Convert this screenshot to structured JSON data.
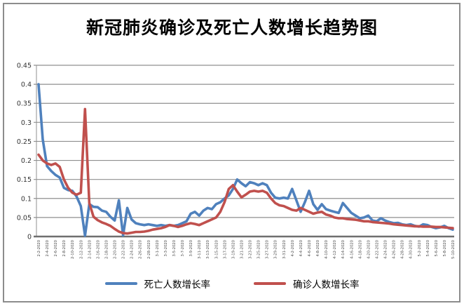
{
  "window": {
    "background": "#ffffff",
    "frame_border_color": "#8c8c8c"
  },
  "chart_data": {
    "type": "line",
    "title": "新冠肺炎确诊及死亡人数增长趋势图",
    "xlabel": "",
    "ylabel": "",
    "ylim": [
      0,
      0.45
    ],
    "y_ticks": [
      "0.45",
      "0.4",
      "0.35",
      "0.3",
      "0.25",
      "0.2",
      "0.15",
      "0.1",
      "0.05",
      "0"
    ],
    "grid": true,
    "legend_position": "bottom",
    "x_label_interval": 2,
    "x_labels": [
      "2-2-2020",
      "2-4-2020",
      "2-6-2020",
      "2-8-2020",
      "2-10-2020",
      "2-12-2020",
      "2-14-2020",
      "2-16-2020",
      "2-18-2020",
      "2-20-2020",
      "2-22-2020",
      "2-24-2020",
      "2-26-2020",
      "2-28-2020",
      "3-1-2020",
      "3-3-2020",
      "3-5-2020",
      "3-7-2020",
      "3-9-2020",
      "3-11-2020",
      "3-13-2020",
      "3-15-2020",
      "3-17-2020",
      "3-19-2020",
      "3-21-2020",
      "3-23-2020",
      "3-25-2020",
      "3-27-2020",
      "3-29-2020",
      "3-31-2020",
      "4-2-2020",
      "4-4-2020",
      "4-6-2020",
      "4-8-2020",
      "4-10-2020",
      "4-12-2020",
      "4-14-2020",
      "4-16-2020",
      "4-18-2020",
      "4-20-2020",
      "4-22-2020",
      "4-24-2020",
      "4-26-2020",
      "4-28-2020",
      "4-30-2020",
      "5-2-2020",
      "5-4-2020",
      "5-6-2020",
      "5-8-2020",
      "5-10-2020"
    ],
    "series": [
      {
        "name": "死亡人数增长率",
        "color": "#4F81BD",
        "values": [
          0.4,
          0.255,
          0.185,
          0.172,
          0.162,
          0.155,
          0.128,
          0.122,
          0.12,
          0.105,
          0.08,
          0.002,
          0.085,
          0.078,
          0.077,
          0.068,
          0.065,
          0.052,
          0.042,
          0.095,
          0.003,
          0.075,
          0.045,
          0.035,
          0.032,
          0.03,
          0.032,
          0.03,
          0.028,
          0.03,
          0.028,
          0.03,
          0.028,
          0.03,
          0.035,
          0.04,
          0.06,
          0.065,
          0.055,
          0.068,
          0.075,
          0.072,
          0.085,
          0.09,
          0.1,
          0.108,
          0.125,
          0.15,
          0.14,
          0.132,
          0.143,
          0.14,
          0.135,
          0.14,
          0.135,
          0.115,
          0.102,
          0.1,
          0.102,
          0.1,
          0.125,
          0.095,
          0.065,
          0.09,
          0.12,
          0.085,
          0.07,
          0.085,
          0.072,
          0.068,
          0.065,
          0.062,
          0.088,
          0.075,
          0.062,
          0.055,
          0.048,
          0.05,
          0.055,
          0.042,
          0.04,
          0.048,
          0.042,
          0.038,
          0.035,
          0.036,
          0.032,
          0.03,
          0.032,
          0.028,
          0.026,
          0.032,
          0.03,
          0.025,
          0.022,
          0.024,
          0.028,
          0.022,
          0.018
        ]
      },
      {
        "name": "确诊人数增长率",
        "color": "#C0504D",
        "values": [
          0.215,
          0.2,
          0.192,
          0.188,
          0.192,
          0.183,
          0.15,
          0.128,
          0.115,
          0.11,
          0.115,
          0.335,
          0.088,
          0.052,
          0.043,
          0.037,
          0.033,
          0.028,
          0.02,
          0.013,
          0.009,
          0.008,
          0.01,
          0.012,
          0.012,
          0.013,
          0.015,
          0.018,
          0.02,
          0.022,
          0.025,
          0.03,
          0.028,
          0.025,
          0.028,
          0.032,
          0.035,
          0.033,
          0.03,
          0.035,
          0.04,
          0.045,
          0.05,
          0.065,
          0.09,
          0.125,
          0.135,
          0.118,
          0.103,
          0.11,
          0.118,
          0.12,
          0.118,
          0.12,
          0.115,
          0.1,
          0.088,
          0.082,
          0.08,
          0.075,
          0.07,
          0.068,
          0.075,
          0.07,
          0.065,
          0.06,
          0.063,
          0.065,
          0.058,
          0.055,
          0.05,
          0.048,
          0.048,
          0.046,
          0.045,
          0.044,
          0.042,
          0.04,
          0.04,
          0.038,
          0.037,
          0.036,
          0.035,
          0.034,
          0.032,
          0.031,
          0.03,
          0.029,
          0.028,
          0.027,
          0.027,
          0.026,
          0.026,
          0.026,
          0.025,
          0.025,
          0.024,
          0.023,
          0.022
        ]
      }
    ]
  }
}
